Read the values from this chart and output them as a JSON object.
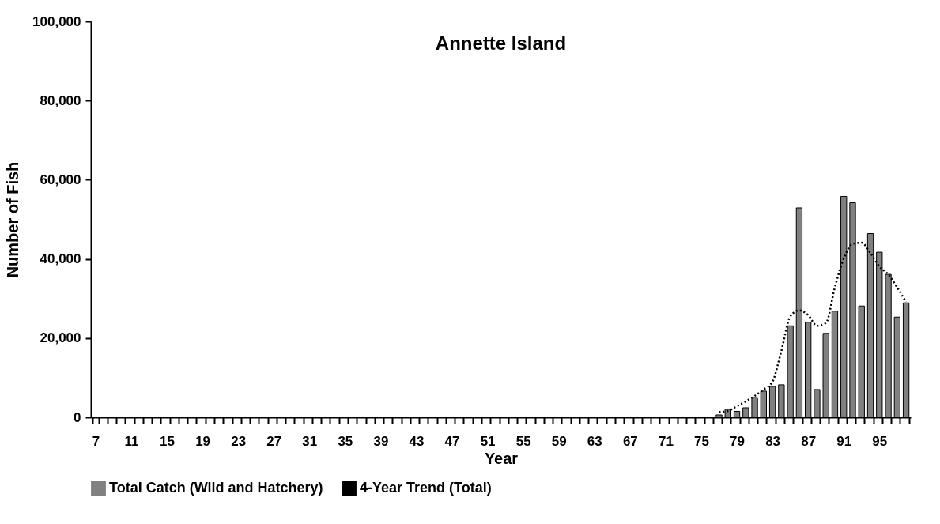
{
  "chart_data": {
    "type": "bar",
    "title": "Annette Island",
    "xlabel": "Year",
    "ylabel": "Number of Fish",
    "categories": [
      "7",
      null,
      null,
      null,
      "11",
      null,
      null,
      null,
      "15",
      null,
      null,
      null,
      "19",
      null,
      null,
      null,
      "23",
      null,
      null,
      null,
      "27",
      null,
      null,
      null,
      "31",
      null,
      null,
      null,
      "35",
      null,
      null,
      null,
      "39",
      null,
      null,
      null,
      "43",
      null,
      null,
      null,
      "47",
      null,
      null,
      null,
      "51",
      null,
      null,
      null,
      "55",
      null,
      null,
      null,
      "59",
      null,
      null,
      null,
      "63",
      null,
      null,
      null,
      "67",
      null,
      null,
      null,
      "71",
      null,
      null,
      null,
      "75",
      null,
      null,
      null,
      "79",
      null,
      null,
      null,
      "83",
      null,
      null,
      null,
      "87",
      null,
      null,
      null,
      "91",
      null,
      null,
      null,
      "95",
      null,
      null,
      null
    ],
    "series": [
      {
        "name": "Total Catch (Wild and Hatchery)",
        "color": "#808080",
        "values": [
          null,
          null,
          null,
          null,
          null,
          null,
          null,
          null,
          null,
          null,
          null,
          null,
          null,
          null,
          null,
          null,
          null,
          null,
          null,
          null,
          null,
          null,
          null,
          null,
          null,
          null,
          null,
          null,
          null,
          null,
          null,
          null,
          null,
          null,
          null,
          null,
          null,
          null,
          null,
          null,
          null,
          null,
          null,
          null,
          null,
          null,
          null,
          null,
          null,
          null,
          null,
          null,
          null,
          null,
          null,
          null,
          null,
          null,
          null,
          null,
          null,
          null,
          null,
          null,
          null,
          null,
          null,
          null,
          null,
          null,
          600,
          2000,
          1500,
          2400,
          5000,
          6600,
          7800,
          8200,
          23100,
          52900,
          24000,
          7000,
          21200,
          26800,
          55800,
          54200,
          28100,
          46400,
          41700,
          36100,
          25300,
          28900
        ]
      },
      {
        "name": "4-Year Trend (Total)",
        "type": "line",
        "color": "#000000",
        "line_style": "dotted",
        "values": [
          null,
          null,
          null,
          null,
          null,
          null,
          null,
          null,
          null,
          null,
          null,
          null,
          null,
          null,
          null,
          null,
          null,
          null,
          null,
          null,
          null,
          null,
          null,
          null,
          null,
          null,
          null,
          null,
          null,
          null,
          null,
          null,
          null,
          null,
          null,
          null,
          null,
          null,
          null,
          null,
          null,
          null,
          null,
          null,
          null,
          null,
          null,
          null,
          null,
          null,
          null,
          null,
          null,
          null,
          null,
          null,
          null,
          null,
          null,
          null,
          null,
          null,
          null,
          null,
          null,
          null,
          null,
          null,
          null,
          null,
          1300,
          1600,
          2800,
          4000,
          5400,
          7000,
          9000,
          16800,
          25500,
          27000,
          25800,
          23100,
          23800,
          32800,
          40100,
          43800,
          44100,
          41500,
          38100,
          36100,
          32800,
          29100
        ]
      }
    ],
    "ylim": [
      0,
      100000
    ],
    "yticks": [
      0,
      {
        "value": 20000,
        "label": "20,000"
      },
      {
        "value": 40000,
        "label": "40,000"
      },
      {
        "value": 60000,
        "label": "60,000"
      },
      {
        "value": 80000,
        "label": "80,000"
      },
      {
        "value": 100000,
        "label": "100,000"
      }
    ],
    "grid": false,
    "legend": "bottom"
  }
}
